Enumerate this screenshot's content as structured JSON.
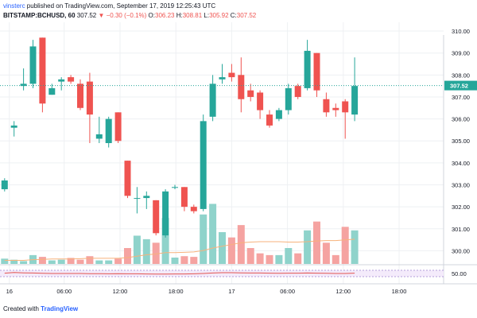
{
  "header": {
    "user": "vinsterc",
    "published_text": "published on TradingView.com, September 17, 2019 12:25:43 UTC",
    "symbol": "BITSTAMP:BCHUSD, 60",
    "last": "307.52",
    "change": "▼ −0.30 (−0.1%)",
    "o_label": "O:",
    "o_value": "306.23",
    "h_label": "H:",
    "h_value": "308.81",
    "l_label": "L:",
    "l_value": "305.92",
    "c_label": "C:",
    "c_value": "307.52"
  },
  "footer": {
    "created_with": "Created with",
    "logo": "TradingView"
  },
  "colors": {
    "up": "#26a69a",
    "down": "#ef5350",
    "up_volume": "#8fd3cb",
    "down_volume": "#f5a3a1",
    "grid": "#eef0f3",
    "price_line": "#26a69a",
    "ma_line": "#f7b27c",
    "rsi_line": "#e2534f",
    "rsi_band": "#f4ebfb",
    "rsi_band_line": "#b39ddb"
  },
  "chart_data": {
    "type": "candlestick",
    "y_ticks": [
      "310.00",
      "309.00",
      "308.00",
      "307.00",
      "306.00",
      "305.00",
      "304.00",
      "303.00",
      "302.00",
      "301.00",
      "300.00"
    ],
    "ylim": [
      299.4,
      310.4
    ],
    "last_price_label": "307.52",
    "last_price": 307.52,
    "x_tick_labels": [
      {
        "label": "16",
        "slot": 0.5
      },
      {
        "label": "06:00",
        "slot": 6.3
      },
      {
        "label": "12:00",
        "slot": 12.2
      },
      {
        "label": "18:00",
        "slot": 18.1
      },
      {
        "label": "17",
        "slot": 24.0
      },
      {
        "label": "06:00",
        "slot": 29.9
      },
      {
        "label": "12:00",
        "slot": 35.8
      },
      {
        "label": "18:00",
        "slot": 41.7
      }
    ],
    "candles": [
      {
        "o": 302.8,
        "h": 303.3,
        "l": 302.7,
        "c": 303.2,
        "v": 0.15
      },
      {
        "o": 305.6,
        "h": 305.9,
        "l": 305.2,
        "c": 305.7,
        "v": 0.12
      },
      {
        "o": 307.5,
        "h": 308.3,
        "l": 307.3,
        "c": 307.6,
        "v": 0.08
      },
      {
        "o": 307.6,
        "h": 309.6,
        "l": 307.4,
        "c": 309.3,
        "v": 0.25
      },
      {
        "o": 309.7,
        "h": 309.7,
        "l": 306.3,
        "c": 306.7,
        "v": 0.2
      },
      {
        "o": 307.1,
        "h": 307.6,
        "l": 307.1,
        "c": 307.4,
        "v": 0.1
      },
      {
        "o": 307.7,
        "h": 307.9,
        "l": 307.3,
        "c": 307.8,
        "v": 0.12
      },
      {
        "o": 307.9,
        "h": 308.0,
        "l": 307.6,
        "c": 307.7,
        "v": 0.17
      },
      {
        "o": 307.6,
        "h": 307.8,
        "l": 306.4,
        "c": 306.5,
        "v": 0.12
      },
      {
        "o": 307.7,
        "h": 308.1,
        "l": 304.9,
        "c": 306.2,
        "v": 0.22
      },
      {
        "o": 305.1,
        "h": 306.1,
        "l": 304.9,
        "c": 305.3,
        "v": 0.1
      },
      {
        "o": 304.9,
        "h": 306.1,
        "l": 304.7,
        "c": 306.0,
        "v": 0.1
      },
      {
        "o": 306.3,
        "h": 306.3,
        "l": 304.9,
        "c": 305.0,
        "v": 0.15
      },
      {
        "o": 304.1,
        "h": 304.1,
        "l": 302.4,
        "c": 302.5,
        "v": 0.45
      },
      {
        "o": 302.4,
        "h": 302.9,
        "l": 301.7,
        "c": 302.4,
        "v": 0.8
      },
      {
        "o": 302.4,
        "h": 302.7,
        "l": 301.9,
        "c": 302.5,
        "v": 0.7
      },
      {
        "o": 302.3,
        "h": 302.3,
        "l": 300.7,
        "c": 300.8,
        "v": 0.6
      },
      {
        "o": 300.7,
        "h": 302.8,
        "l": 300.6,
        "c": 302.7,
        "v": 1.3
      },
      {
        "o": 302.9,
        "h": 303.0,
        "l": 302.8,
        "c": 302.9,
        "v": 0.18
      },
      {
        "o": 302.9,
        "h": 302.9,
        "l": 301.8,
        "c": 302.0,
        "v": 0.22
      },
      {
        "o": 302.0,
        "h": 302.1,
        "l": 301.7,
        "c": 301.8,
        "v": 0.2
      },
      {
        "o": 301.9,
        "h": 306.2,
        "l": 301.8,
        "c": 305.9,
        "v": 1.4
      },
      {
        "o": 306.1,
        "h": 308.0,
        "l": 305.9,
        "c": 307.6,
        "v": 1.7
      },
      {
        "o": 307.8,
        "h": 308.5,
        "l": 307.6,
        "c": 307.9,
        "v": 0.9
      },
      {
        "o": 308.1,
        "h": 308.5,
        "l": 307.7,
        "c": 307.9,
        "v": 0.75
      },
      {
        "o": 308.0,
        "h": 308.8,
        "l": 306.3,
        "c": 306.9,
        "v": 1.1
      },
      {
        "o": 307.3,
        "h": 307.6,
        "l": 306.8,
        "c": 307.0,
        "v": 0.45
      },
      {
        "o": 307.2,
        "h": 307.3,
        "l": 306.0,
        "c": 306.4,
        "v": 0.3
      },
      {
        "o": 306.2,
        "h": 306.4,
        "l": 305.6,
        "c": 305.7,
        "v": 0.25
      },
      {
        "o": 306.0,
        "h": 306.5,
        "l": 305.9,
        "c": 306.4,
        "v": 0.25
      },
      {
        "o": 306.4,
        "h": 307.6,
        "l": 306.2,
        "c": 307.4,
        "v": 0.45
      },
      {
        "o": 307.5,
        "h": 307.6,
        "l": 306.9,
        "c": 307.0,
        "v": 0.3
      },
      {
        "o": 307.4,
        "h": 309.6,
        "l": 307.3,
        "c": 309.1,
        "v": 0.95
      },
      {
        "o": 309.0,
        "h": 309.0,
        "l": 307.0,
        "c": 307.3,
        "v": 1.2
      },
      {
        "o": 306.9,
        "h": 307.2,
        "l": 306.1,
        "c": 306.3,
        "v": 0.6
      },
      {
        "o": 306.5,
        "h": 306.7,
        "l": 306.1,
        "c": 306.4,
        "v": 0.25
      },
      {
        "o": 306.8,
        "h": 306.9,
        "l": 305.1,
        "c": 306.3,
        "v": 1.05
      },
      {
        "o": 306.2,
        "h": 308.8,
        "l": 305.9,
        "c": 307.5,
        "v": 0.95
      }
    ],
    "volume_ma": [
      0.1,
      0.1,
      0.1,
      0.12,
      0.13,
      0.14,
      0.14,
      0.14,
      0.15,
      0.16,
      0.16,
      0.16,
      0.16,
      0.18,
      0.22,
      0.26,
      0.28,
      0.32,
      0.32,
      0.33,
      0.34,
      0.38,
      0.45,
      0.5,
      0.55,
      0.6,
      0.62,
      0.63,
      0.63,
      0.63,
      0.62,
      0.62,
      0.63,
      0.65,
      0.66,
      0.66,
      0.68,
      0.7
    ],
    "rsi": {
      "upper_band": 70,
      "lower_band": 30,
      "level_label": "50.00",
      "values": [
        52,
        56,
        54,
        53,
        51,
        50,
        50,
        50,
        50,
        49,
        49,
        48,
        49,
        48,
        48,
        47,
        46,
        46,
        47,
        47,
        48,
        50,
        53,
        55,
        55,
        54,
        53,
        53,
        52,
        51,
        52,
        52,
        53,
        52,
        51,
        50,
        50,
        52
      ]
    }
  }
}
